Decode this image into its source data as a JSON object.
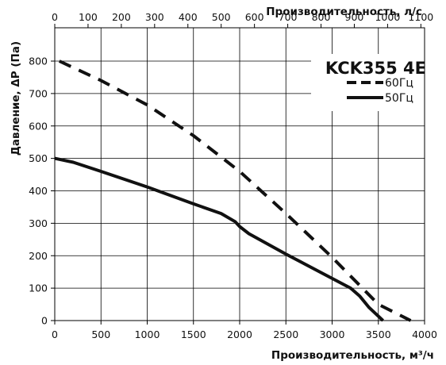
{
  "chart_data": {
    "type": "line",
    "title": "KCK355 4E",
    "xlabel": "Производительность, м³/ч",
    "ylabel": "Давление, ΔP (Па)",
    "x2label": "Производительность, л/с",
    "xlim": [
      0,
      4000
    ],
    "ylim": [
      0,
      850
    ],
    "x2lim": [
      0,
      1111.1
    ],
    "x_ticks": [
      0,
      500,
      1000,
      1500,
      2000,
      2500,
      3000,
      3500,
      4000
    ],
    "y_ticks": [
      0,
      100,
      200,
      300,
      400,
      500,
      600,
      700,
      800
    ],
    "x2_ticks": [
      0,
      100,
      200,
      300,
      400,
      500,
      600,
      700,
      800,
      900,
      1000,
      1100
    ],
    "grid": true,
    "legend_position": "top-right",
    "series": [
      {
        "name": "60Гц",
        "style": "dashed",
        "color": "#111111",
        "x": [
          50,
          500,
          1000,
          1500,
          2000,
          2500,
          3000,
          3500,
          3850
        ],
        "y": [
          800,
          740,
          665,
          570,
          460,
          330,
          195,
          50,
          0
        ]
      },
      {
        "name": "50Гц",
        "style": "solid",
        "color": "#111111",
        "x": [
          0,
          200,
          500,
          1000,
          1500,
          1800,
          1950,
          2000,
          2100,
          2500,
          3000,
          3200,
          3300,
          3400,
          3550
        ],
        "y": [
          500,
          488,
          460,
          412,
          360,
          330,
          305,
          290,
          268,
          205,
          130,
          100,
          75,
          40,
          0
        ]
      }
    ]
  }
}
